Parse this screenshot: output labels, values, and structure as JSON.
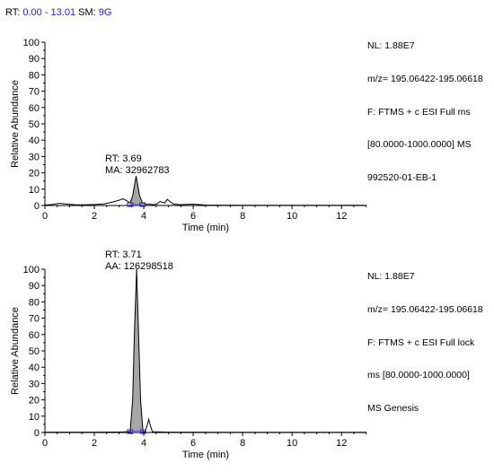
{
  "header": {
    "rt_label": "RT:",
    "rt_value": "0.00 - 13.01",
    "sm_label": "SM:",
    "sm_value": "9G"
  },
  "colors": {
    "trace": "#000000",
    "peak_fill": "#a6a6a6",
    "baseline_marker": "#2a2ae0",
    "header_value": "#1f1fd0"
  },
  "chart_data": [
    {
      "type": "line",
      "xlabel": "Time (min)",
      "ylabel": "Relative Abundance",
      "xlim": [
        0,
        13.01
      ],
      "ylim": [
        0,
        100
      ],
      "xticks": [
        0,
        2,
        4,
        6,
        8,
        10,
        12
      ],
      "yticks": [
        0,
        10,
        20,
        30,
        40,
        50,
        60,
        70,
        80,
        90,
        100
      ],
      "info_lines": [
        "NL: 1.88E7",
        "m/z= 195.06422-195.06618",
        "F: FTMS + c ESI Full ms",
        "[80.0000-1000.0000]  MS",
        "992520-01-EB-1"
      ],
      "peak_annotation": [
        "RT: 3.69",
        "MA: 32962783"
      ],
      "peak": {
        "rt": 3.69,
        "start": 3.45,
        "end": 3.95,
        "height": 18
      },
      "trace": [
        [
          0,
          0.3
        ],
        [
          0.3,
          0.6
        ],
        [
          0.6,
          1.3
        ],
        [
          0.8,
          1.0
        ],
        [
          1.2,
          0.5
        ],
        [
          1.6,
          0.4
        ],
        [
          2.0,
          0.6
        ],
        [
          2.4,
          1.0
        ],
        [
          2.7,
          2.0
        ],
        [
          3.0,
          3.2
        ],
        [
          3.15,
          4.2
        ],
        [
          3.3,
          3.0
        ],
        [
          3.45,
          1.5
        ],
        [
          3.55,
          6
        ],
        [
          3.62,
          12
        ],
        [
          3.69,
          18
        ],
        [
          3.76,
          12
        ],
        [
          3.83,
          6
        ],
        [
          3.95,
          1.5
        ],
        [
          4.1,
          0.6
        ],
        [
          4.25,
          0.8
        ],
        [
          4.4,
          0.5
        ],
        [
          4.55,
          1.0
        ],
        [
          4.65,
          2.5
        ],
        [
          4.75,
          2.0
        ],
        [
          4.85,
          1.5
        ],
        [
          4.95,
          3.8
        ],
        [
          5.05,
          2.5
        ],
        [
          5.2,
          0.8
        ],
        [
          5.5,
          0.5
        ],
        [
          6.0,
          0.8
        ],
        [
          6.5,
          0.3
        ],
        [
          7.0,
          0.2
        ],
        [
          8.0,
          0.1
        ],
        [
          9.0,
          0.1
        ],
        [
          10,
          0.1
        ],
        [
          11,
          0.1
        ],
        [
          12,
          0.1
        ],
        [
          13.01,
          0.1
        ]
      ]
    },
    {
      "type": "line",
      "xlabel": "Time (min)",
      "ylabel": "Relative Abundance",
      "xlim": [
        0,
        13.01
      ],
      "ylim": [
        0,
        100
      ],
      "xticks": [
        0,
        2,
        4,
        6,
        8,
        10,
        12
      ],
      "yticks": [
        0,
        10,
        20,
        30,
        40,
        50,
        60,
        70,
        80,
        90,
        100
      ],
      "info_lines": [
        "NL: 1.88E7",
        "m/z= 195.06422-195.06618",
        "F: FTMS + c ESI Full lock",
        "ms [80.0000-1000.0000]",
        "MS  Genesis"
      ],
      "peak_annotation": [
        "RT: 3.71",
        "AA: 126298518"
      ],
      "peak": {
        "rt": 3.71,
        "start": 3.45,
        "end": 3.97,
        "height": 100
      },
      "trace": [
        [
          0,
          0.2
        ],
        [
          1,
          0.2
        ],
        [
          2,
          0.2
        ],
        [
          3,
          0.3
        ],
        [
          3.2,
          0.4
        ],
        [
          3.45,
          0.6
        ],
        [
          3.55,
          20
        ],
        [
          3.62,
          60
        ],
        [
          3.71,
          100
        ],
        [
          3.79,
          60
        ],
        [
          3.87,
          20
        ],
        [
          3.97,
          0.6
        ],
        [
          4.05,
          0.5
        ],
        [
          4.12,
          3.5
        ],
        [
          4.2,
          8
        ],
        [
          4.28,
          3.5
        ],
        [
          4.35,
          0.5
        ],
        [
          5,
          0.2
        ],
        [
          6,
          0.2
        ],
        [
          8,
          0.1
        ],
        [
          10,
          0.1
        ],
        [
          12,
          0.1
        ],
        [
          13.01,
          0.1
        ]
      ]
    }
  ]
}
